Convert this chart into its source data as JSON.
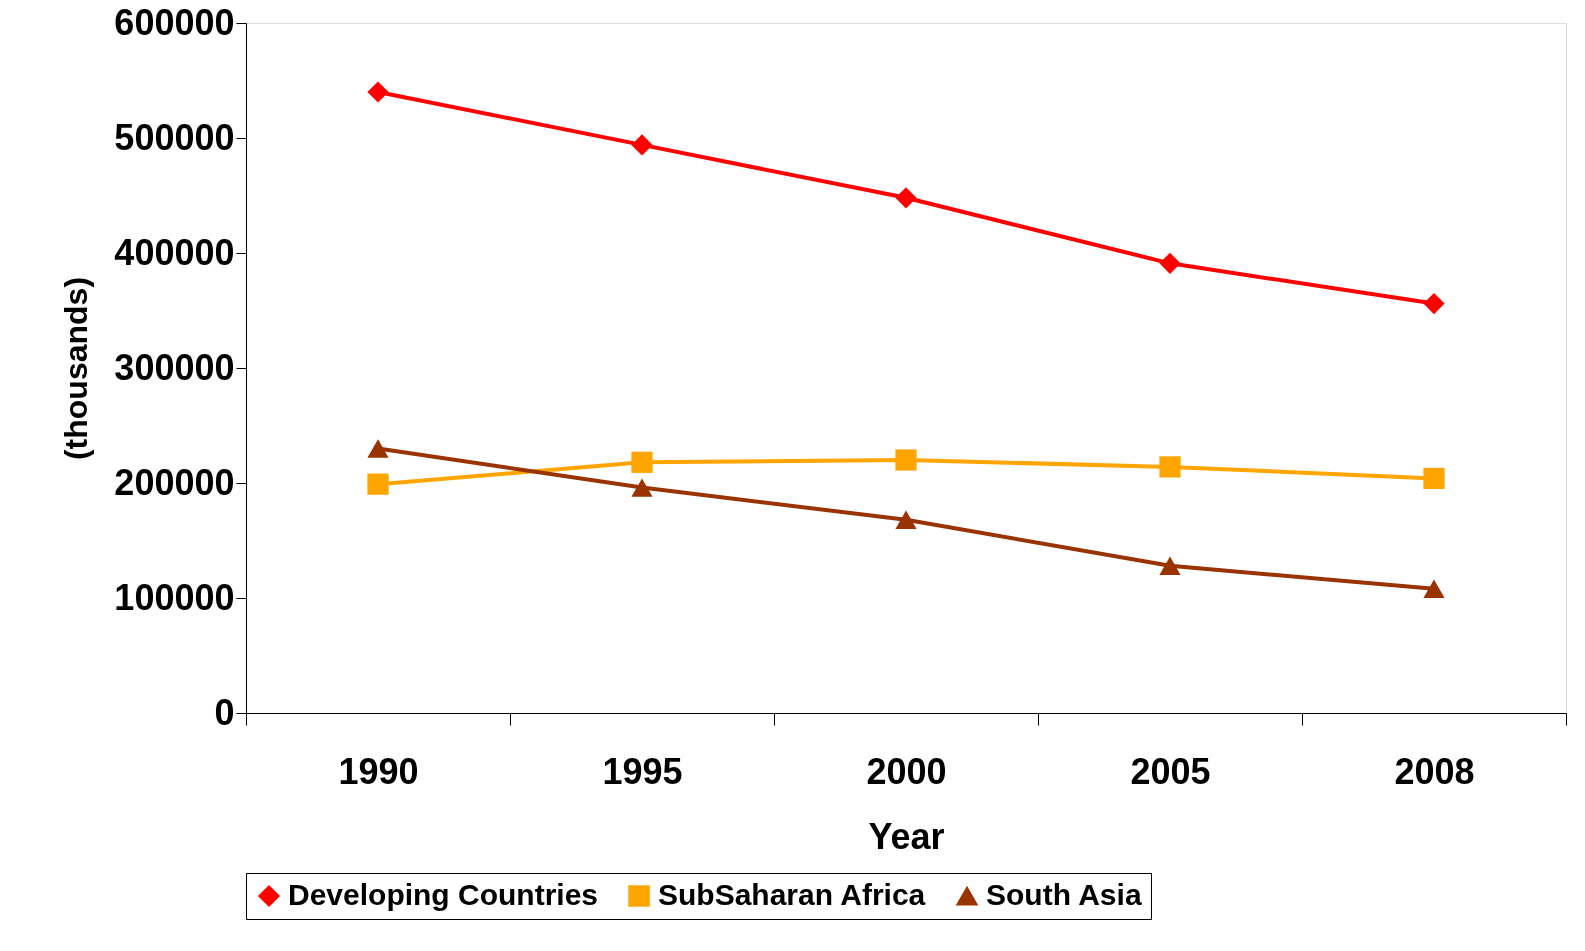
{
  "chart_data": {
    "type": "line",
    "xlabel": "Year",
    "ylabel": "(thousands)",
    "categories": [
      "1990",
      "1995",
      "2000",
      "2005",
      "2008"
    ],
    "series": [
      {
        "name": "Developing Countries",
        "color": "#ff0000",
        "marker": "diamond",
        "values": [
          540000,
          494000,
          448000,
          391000,
          356000
        ]
      },
      {
        "name": "SubSaharan Africa",
        "color": "#ffa500",
        "marker": "square",
        "values": [
          199000,
          218000,
          220000,
          214000,
          204000
        ]
      },
      {
        "name": "South Asia",
        "color": "#993300",
        "marker": "triangle",
        "values": [
          230000,
          196000,
          168000,
          128000,
          108000
        ]
      }
    ],
    "ylim": [
      0,
      600000
    ],
    "yticks": [
      0,
      100000,
      200000,
      300000,
      400000,
      500000,
      600000
    ],
    "grid": false,
    "legend": "bottom",
    "line_style": "solid"
  }
}
